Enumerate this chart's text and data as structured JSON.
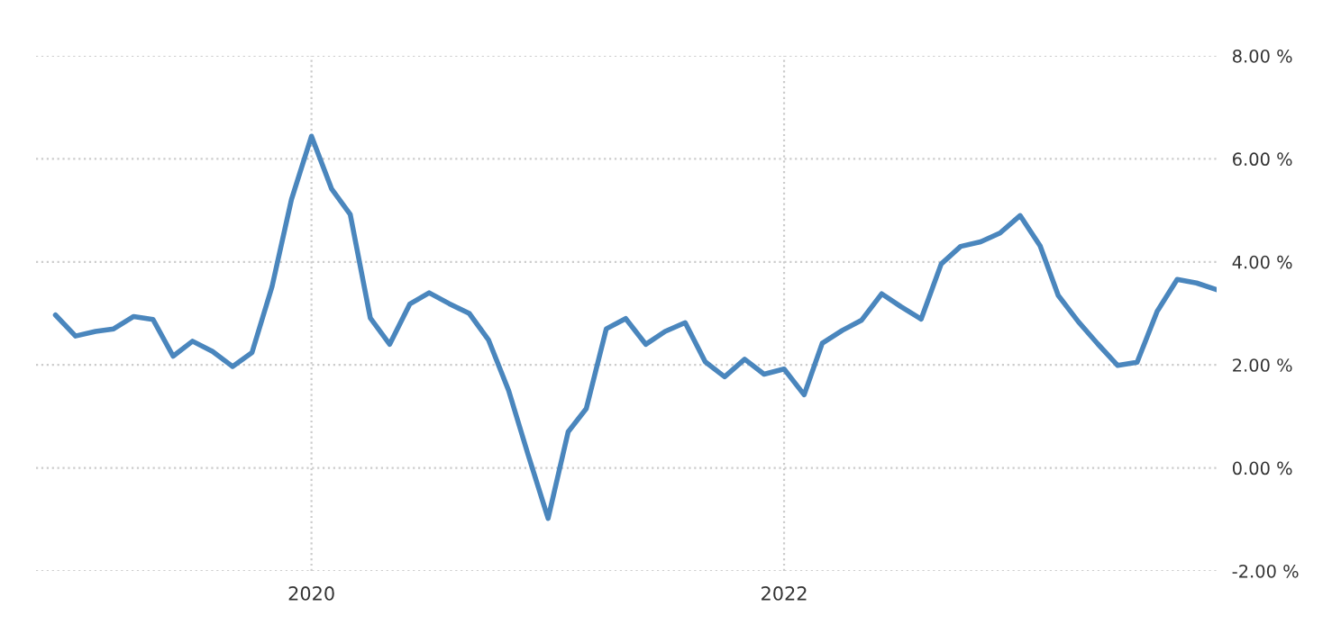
{
  "chart_data": {
    "type": "line",
    "x": [
      "2018-12",
      "2019-01",
      "2019-02",
      "2019-03",
      "2019-04",
      "2019-05",
      "2019-06",
      "2019-07",
      "2019-08",
      "2019-09",
      "2019-10",
      "2019-11",
      "2019-12",
      "2020-01",
      "2020-02",
      "2020-03",
      "2020-04",
      "2020-05",
      "2020-06",
      "2020-07",
      "2020-08",
      "2020-09",
      "2020-10",
      "2020-11",
      "2020-12",
      "2021-01",
      "2021-02",
      "2021-03",
      "2021-04",
      "2021-05",
      "2021-06",
      "2021-07",
      "2021-08",
      "2021-09",
      "2021-10",
      "2021-11",
      "2021-12",
      "2022-01",
      "2022-02",
      "2022-03",
      "2022-04",
      "2022-05",
      "2022-06",
      "2022-07",
      "2022-08",
      "2022-09",
      "2022-10",
      "2022-11",
      "2022-12",
      "2023-01",
      "2023-02",
      "2023-03",
      "2023-04",
      "2023-05",
      "2023-06",
      "2023-07",
      "2023-08",
      "2023-09",
      "2023-10",
      "2023-11"
    ],
    "series": [
      {
        "color": "#4a86bd",
        "values": [
          2.97,
          2.56,
          2.65,
          2.7,
          2.94,
          2.88,
          2.17,
          2.46,
          2.26,
          1.97,
          2.24,
          3.52,
          5.21,
          6.44,
          5.42,
          4.92,
          2.91,
          2.4,
          3.18,
          3.4,
          3.19,
          3.0,
          2.48,
          1.5,
          0.26,
          -0.98,
          0.7,
          1.15,
          2.7,
          2.9,
          2.4,
          2.65,
          2.82,
          2.06,
          1.77,
          2.11,
          1.82,
          1.92,
          1.42,
          2.42,
          2.67,
          2.87,
          3.38,
          3.13,
          2.89,
          3.96,
          4.3,
          4.39,
          4.56,
          4.9,
          4.31,
          3.35,
          2.84,
          2.41,
          1.99,
          2.05,
          3.04,
          3.66,
          3.59,
          3.46
        ]
      }
    ],
    "xlim": [
      "2018-11-01",
      "2023-11-01"
    ],
    "xticks": [
      {
        "value": "2020-01-01",
        "label": "2020"
      },
      {
        "value": "2022-01-01",
        "label": "2022"
      }
    ],
    "ylim": [
      -2,
      8
    ],
    "yticks": [
      {
        "value": -2,
        "label": "-2.00 %"
      },
      {
        "value": 0,
        "label": "0.00 %"
      },
      {
        "value": 2,
        "label": "2.00 %"
      },
      {
        "value": 4,
        "label": "4.00 %"
      },
      {
        "value": 6,
        "label": "6.00 %"
      },
      {
        "value": 8,
        "label": "8.00 %"
      }
    ],
    "grid": true,
    "marker": "none",
    "line_style": "solid"
  }
}
